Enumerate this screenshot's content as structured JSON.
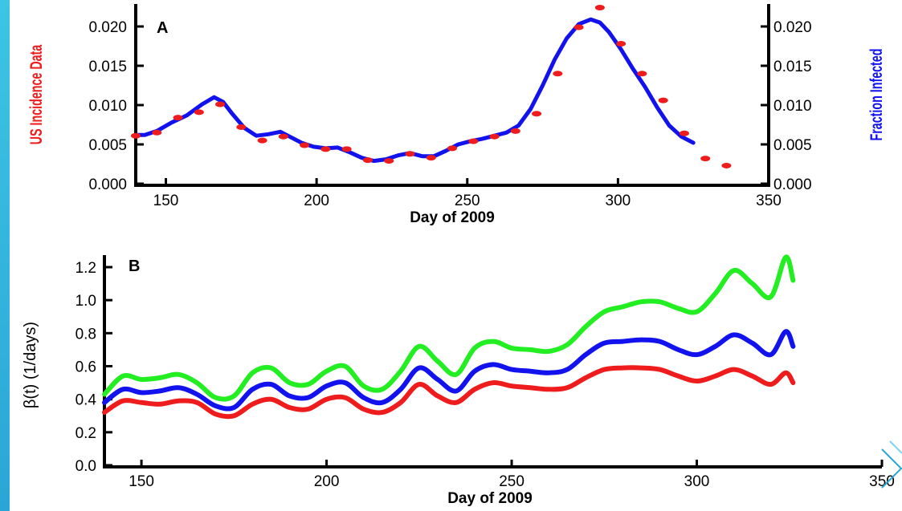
{
  "colors": {
    "incidence_points": "#ee1c1c",
    "fraction_line": "#1212ee",
    "beta_red": "#ee1c1c",
    "beta_blue": "#1212ee",
    "beta_green": "#22ee22",
    "slide_accent": "#2aa6d6"
  },
  "chart_data": [
    {
      "panel": "A",
      "type": "line",
      "xlabel": "Day of 2009",
      "ylabel_left": "US Incidence Data",
      "ylabel_right": "Fraction Infected",
      "xlim": [
        140,
        350
      ],
      "ylim": [
        0,
        0.023
      ],
      "xticks": [
        "150",
        "200",
        "250",
        "300",
        "350"
      ],
      "yticks_left": [
        "0.000",
        "0.005",
        "0.010",
        "0.015",
        "0.020"
      ],
      "yticks_right": [
        "0.000",
        "0.005",
        "0.010",
        "0.015",
        "0.020"
      ],
      "grid": false,
      "series": [
        {
          "kind": "scatter",
          "x": [
            140,
            147,
            154,
            161,
            168,
            175,
            182,
            189,
            196,
            203,
            210,
            217,
            224,
            231,
            238,
            245,
            252,
            259,
            266,
            273,
            280,
            287,
            294,
            301,
            308,
            315,
            322,
            329,
            336
          ],
          "y": [
            0.0061,
            0.0065,
            0.0084,
            0.0091,
            0.0101,
            0.0072,
            0.0055,
            0.006,
            0.0049,
            0.0044,
            0.0044,
            0.003,
            0.0029,
            0.0038,
            0.0033,
            0.0045,
            0.0054,
            0.006,
            0.0067,
            0.0089,
            0.014,
            0.0199,
            0.0224,
            0.0178,
            0.014,
            0.0106,
            0.0064,
            0.0032,
            0.0023
          ]
        },
        {
          "kind": "line",
          "x": [
            140,
            143,
            147,
            152,
            157,
            162,
            166,
            169,
            172,
            176,
            180,
            184,
            188,
            191,
            195,
            199,
            203,
            207,
            211,
            215,
            219,
            223,
            227,
            231,
            235,
            239,
            243,
            247,
            251,
            255,
            259,
            263,
            267,
            271,
            275,
            279,
            283,
            287,
            291,
            294,
            297,
            301,
            305,
            309,
            313,
            317,
            321,
            325
          ],
          "y": [
            0.0062,
            0.0062,
            0.0067,
            0.0078,
            0.0087,
            0.0101,
            0.011,
            0.0104,
            0.0089,
            0.0071,
            0.0061,
            0.0063,
            0.0066,
            0.006,
            0.0052,
            0.0047,
            0.0045,
            0.0046,
            0.004,
            0.0033,
            0.0029,
            0.0031,
            0.0036,
            0.0039,
            0.0035,
            0.0035,
            0.0042,
            0.005,
            0.0054,
            0.0057,
            0.0061,
            0.0065,
            0.0074,
            0.0095,
            0.0125,
            0.0158,
            0.0185,
            0.0203,
            0.0209,
            0.0205,
            0.0193,
            0.0171,
            0.0146,
            0.0123,
            0.0097,
            0.0074,
            0.006,
            0.0052
          ]
        }
      ]
    },
    {
      "panel": "B",
      "type": "line",
      "xlabel": "Day of 2009",
      "ylabel": "β(t) (1/days)",
      "xlim": [
        140,
        350
      ],
      "ylim": [
        0,
        1.3
      ],
      "xticks": [
        "150",
        "200",
        "250",
        "300",
        "350"
      ],
      "yticks": [
        "0.0",
        "0.2",
        "0.4",
        "0.6",
        "0.8",
        "1.0",
        "1.2"
      ],
      "grid": false,
      "series": [
        {
          "color_key": "beta_red",
          "x": [
            140,
            145,
            150,
            155,
            160,
            165,
            170,
            175,
            180,
            185,
            190,
            195,
            200,
            205,
            210,
            215,
            220,
            225,
            230,
            235,
            240,
            245,
            250,
            255,
            260,
            265,
            270,
            275,
            280,
            285,
            290,
            295,
            300,
            305,
            310,
            315,
            320,
            324,
            326
          ],
          "y": [
            0.32,
            0.39,
            0.38,
            0.37,
            0.39,
            0.38,
            0.31,
            0.3,
            0.37,
            0.4,
            0.35,
            0.34,
            0.4,
            0.41,
            0.34,
            0.32,
            0.38,
            0.49,
            0.42,
            0.38,
            0.46,
            0.5,
            0.48,
            0.47,
            0.46,
            0.47,
            0.53,
            0.58,
            0.59,
            0.59,
            0.58,
            0.54,
            0.51,
            0.54,
            0.58,
            0.54,
            0.49,
            0.56,
            0.5
          ]
        },
        {
          "color_key": "beta_blue",
          "x": [
            140,
            145,
            150,
            155,
            160,
            165,
            170,
            175,
            180,
            185,
            190,
            195,
            200,
            205,
            210,
            215,
            220,
            225,
            230,
            235,
            240,
            245,
            250,
            255,
            260,
            265,
            270,
            275,
            280,
            285,
            290,
            295,
            300,
            305,
            310,
            315,
            320,
            324,
            326
          ],
          "y": [
            0.38,
            0.46,
            0.44,
            0.45,
            0.47,
            0.43,
            0.36,
            0.35,
            0.46,
            0.49,
            0.42,
            0.41,
            0.48,
            0.5,
            0.41,
            0.38,
            0.46,
            0.59,
            0.52,
            0.45,
            0.57,
            0.61,
            0.58,
            0.57,
            0.56,
            0.58,
            0.67,
            0.74,
            0.75,
            0.76,
            0.75,
            0.7,
            0.67,
            0.72,
            0.79,
            0.74,
            0.67,
            0.81,
            0.72
          ]
        },
        {
          "color_key": "beta_green",
          "x": [
            140,
            145,
            150,
            155,
            160,
            165,
            170,
            175,
            180,
            185,
            190,
            195,
            200,
            205,
            210,
            215,
            220,
            225,
            230,
            235,
            240,
            245,
            250,
            255,
            260,
            265,
            270,
            275,
            280,
            285,
            290,
            295,
            300,
            305,
            310,
            315,
            320,
            324,
            326
          ],
          "y": [
            0.43,
            0.54,
            0.52,
            0.53,
            0.55,
            0.5,
            0.41,
            0.42,
            0.56,
            0.59,
            0.5,
            0.49,
            0.57,
            0.6,
            0.48,
            0.46,
            0.57,
            0.72,
            0.63,
            0.55,
            0.71,
            0.75,
            0.71,
            0.7,
            0.69,
            0.73,
            0.84,
            0.93,
            0.96,
            0.99,
            0.99,
            0.95,
            0.93,
            1.04,
            1.18,
            1.1,
            1.02,
            1.26,
            1.12
          ]
        }
      ]
    }
  ]
}
